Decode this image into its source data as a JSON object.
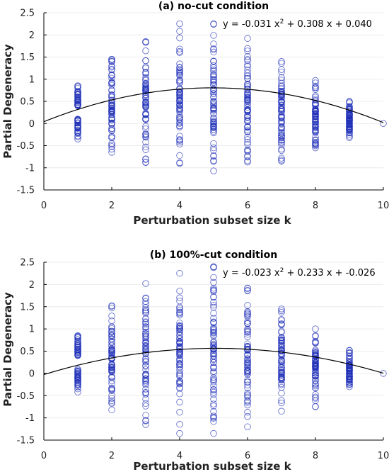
{
  "chart_data": [
    {
      "type": "scatter",
      "title": "(a) no-cut condition",
      "xlabel": "Perturbation subset size k",
      "ylabel": "Partial Degeneracy",
      "xlim": [
        0,
        10
      ],
      "ylim": [
        -1.5,
        2.5
      ],
      "xticks": [
        "0",
        "2",
        "4",
        "6",
        "8",
        "10"
      ],
      "yticks": [
        "-1.5",
        "-1",
        "-0.5",
        "0",
        "0.5",
        "1",
        "1.5",
        "2",
        "2.5"
      ],
      "grid": true,
      "fit_equation": "y = -0.031 x^2 + 0.308 x + 0.040",
      "fit": {
        "a": -0.031,
        "b": 0.308,
        "c": 0.04
      },
      "marker_color": "#2030b8",
      "point_ranges": [
        {
          "k": 1,
          "min": -0.35,
          "max": 0.85,
          "gap": [
            0.1,
            0.4
          ]
        },
        {
          "k": 2,
          "min": -0.65,
          "max": 1.45
        },
        {
          "k": 3,
          "min": -0.88,
          "max": 1.85
        },
        {
          "k": 4,
          "min": -0.9,
          "max": 2.25
        },
        {
          "k": 5,
          "min": -1.07,
          "max": 2.25
        },
        {
          "k": 6,
          "min": -0.87,
          "max": 1.92
        },
        {
          "k": 7,
          "min": -0.85,
          "max": 1.4
        },
        {
          "k": 8,
          "min": -0.55,
          "max": 0.97
        },
        {
          "k": 9,
          "min": -0.32,
          "max": 0.5
        },
        {
          "k": 10,
          "min": 0.0,
          "max": 0.0
        }
      ]
    },
    {
      "type": "scatter",
      "title": "(b) 100%-cut condition",
      "xlabel": "Perturbation subset size k",
      "ylabel": "Partial Degeneracy",
      "xlim": [
        0,
        10
      ],
      "ylim": [
        -1.5,
        2.5
      ],
      "xticks": [
        "0",
        "2",
        "4",
        "6",
        "8",
        "10"
      ],
      "yticks": [
        "-1.5",
        "-1",
        "-0.5",
        "0",
        "0.5",
        "1",
        "1.5",
        "2",
        "2.5"
      ],
      "grid": true,
      "fit_equation": "y = -0.023 x^2 + 0.233 x + -0.026",
      "fit": {
        "a": -0.023,
        "b": 0.233,
        "c": -0.026
      },
      "marker_color": "#2030b8",
      "point_ranges": [
        {
          "k": 1,
          "min": -0.42,
          "max": 0.85,
          "gap": [
            0.1,
            0.4
          ]
        },
        {
          "k": 2,
          "min": -0.82,
          "max": 1.52
        },
        {
          "k": 3,
          "min": -1.15,
          "max": 2.02
        },
        {
          "k": 4,
          "min": -1.35,
          "max": 2.25
        },
        {
          "k": 5,
          "min": -1.35,
          "max": 2.4
        },
        {
          "k": 6,
          "min": -1.2,
          "max": 1.92
        },
        {
          "k": 7,
          "min": -0.85,
          "max": 1.45
        },
        {
          "k": 8,
          "min": -0.75,
          "max": 1.0
        },
        {
          "k": 9,
          "min": -0.3,
          "max": 0.52
        },
        {
          "k": 10,
          "min": 0.0,
          "max": 0.0
        }
      ]
    }
  ]
}
